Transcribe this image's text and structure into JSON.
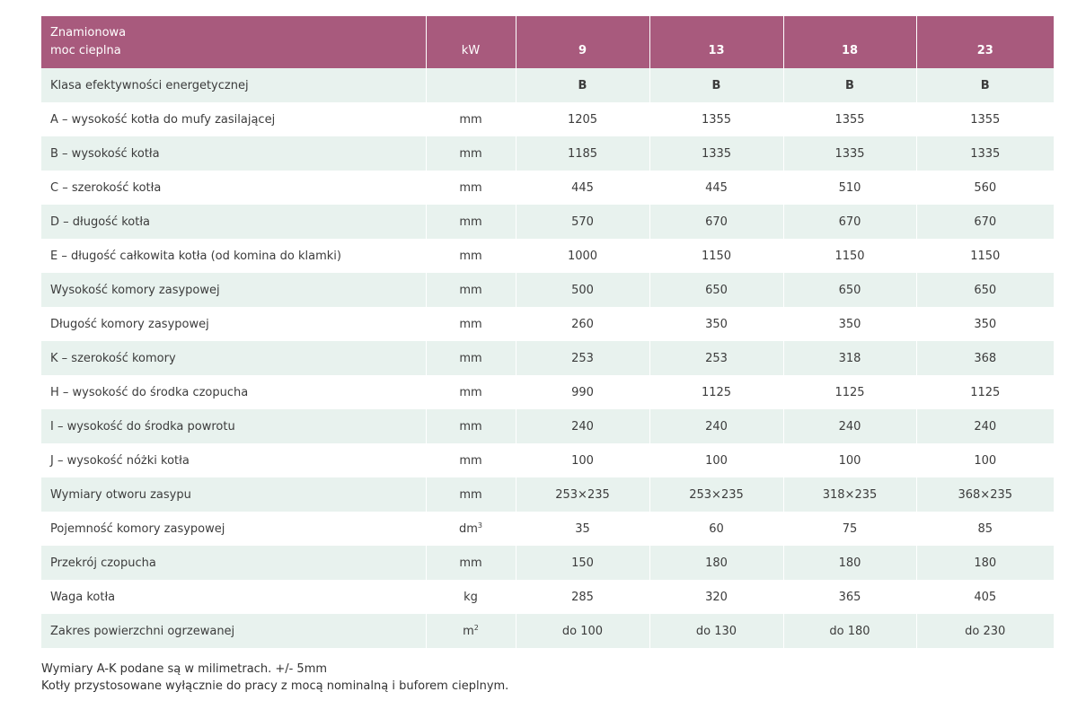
{
  "header": {
    "label_line1": "Znamionowa",
    "label_line2": "moc cieplna",
    "unit": "kW",
    "values": [
      "9",
      "13",
      "18",
      "23"
    ]
  },
  "rows": [
    {
      "label": "Klasa efektywności energetycznej",
      "unit": "",
      "values": [
        "B",
        "B",
        "B",
        "B"
      ]
    },
    {
      "label": "A – wysokość kotła do mufy zasilającej",
      "unit": "mm",
      "values": [
        "1205",
        "1355",
        "1355",
        "1355"
      ]
    },
    {
      "label": "B – wysokość kotła",
      "unit": "mm",
      "values": [
        "1185",
        "1335",
        "1335",
        "1335"
      ]
    },
    {
      "label": "C – szerokość kotła",
      "unit": "mm",
      "values": [
        "445",
        "445",
        "510",
        "560"
      ]
    },
    {
      "label": "D – długość kotła",
      "unit": "mm",
      "values": [
        "570",
        "670",
        "670",
        "670"
      ]
    },
    {
      "label": "E – długość całkowita kotła (od komina do klamki)",
      "unit": "mm",
      "values": [
        "1000",
        "1150",
        "1150",
        "1150"
      ]
    },
    {
      "label": "Wysokość komory zasypowej",
      "unit": "mm",
      "values": [
        "500",
        "650",
        "650",
        "650"
      ]
    },
    {
      "label": "Długość komory zasypowej",
      "unit": "mm",
      "values": [
        "260",
        "350",
        "350",
        "350"
      ]
    },
    {
      "label": "K – szerokość komory",
      "unit": "mm",
      "values": [
        "253",
        "253",
        "318",
        "368"
      ]
    },
    {
      "label": "H – wysokość do środka czopucha",
      "unit": "mm",
      "values": [
        "990",
        "1125",
        "1125",
        "1125"
      ]
    },
    {
      "label": "I – wysokość do środka powrotu",
      "unit": "mm",
      "values": [
        "240",
        "240",
        "240",
        "240"
      ]
    },
    {
      "label": "J – wysokość nóżki kotła",
      "unit": "mm",
      "values": [
        "100",
        "100",
        "100",
        "100"
      ]
    },
    {
      "label": "Wymiary otworu zasypu",
      "unit": "mm",
      "values": [
        "253×235",
        "253×235",
        "318×235",
        "368×235"
      ]
    },
    {
      "label": "Pojemność komory zasypowej",
      "unit": "dm",
      "unit_sup": "3",
      "values": [
        "35",
        "60",
        "75",
        "85"
      ]
    },
    {
      "label": "Przekrój czopucha",
      "unit": "mm",
      "values": [
        "150",
        "180",
        "180",
        "180"
      ]
    },
    {
      "label": "Waga kotła",
      "unit": "kg",
      "values": [
        "285",
        "320",
        "365",
        "405"
      ]
    },
    {
      "label": "Zakres powierzchni ogrzewanej",
      "unit": "m",
      "unit_sup": "2",
      "values": [
        "do 100",
        "do 130",
        "do 180",
        "do 230"
      ]
    }
  ],
  "notes": {
    "line1": "Wymiary A-K podane są w milimetrach. +/- 5mm",
    "line2": "Kotły przystosowane wyłącznie do pracy z mocą nominalną i buforem cieplnym."
  }
}
